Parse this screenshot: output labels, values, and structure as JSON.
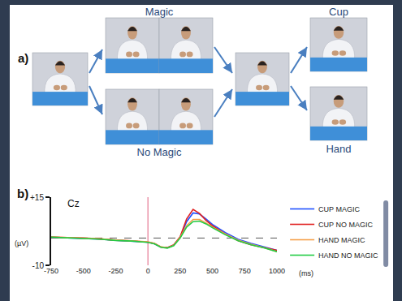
{
  "diagram": {
    "panel_label": "a)",
    "labels": {
      "magic": "Magic",
      "no_magic": "No Magic",
      "cup": "Cup",
      "hand": "Hand"
    }
  },
  "chart_data": {
    "panel_label": "b)",
    "type": "line",
    "annotation": "Cz",
    "x_label": "(ms)",
    "y_label": "(µV)",
    "x": [
      -750,
      -625,
      -500,
      -375,
      -250,
      -125,
      0,
      50,
      100,
      150,
      200,
      250,
      300,
      350,
      400,
      450,
      500,
      600,
      700,
      800,
      900,
      1000
    ],
    "series": [
      {
        "name": "CUP MAGIC",
        "color": "#2050ff",
        "values": [
          0.3,
          0.1,
          0,
          -0.4,
          -0.8,
          -1.1,
          -1.5,
          -2.1,
          -3.3,
          -3.5,
          -2.6,
          0.3,
          6,
          9.2,
          8.8,
          7,
          5,
          2,
          -0.5,
          -2,
          -3.3,
          -4.5
        ]
      },
      {
        "name": "CUP NO MAGIC",
        "color": "#e02020",
        "values": [
          0.3,
          0.2,
          0,
          -0.3,
          -0.8,
          -1,
          -1.5,
          -2,
          -3.3,
          -3.5,
          -2.5,
          0.5,
          7,
          10.5,
          9,
          6.5,
          4.5,
          1.5,
          -1,
          -2.5,
          -3.5,
          -4.5
        ]
      },
      {
        "name": "HAND MAGIC",
        "color": "#f5a04a",
        "values": [
          0.4,
          0.2,
          0.1,
          -0.3,
          -0.7,
          -1,
          -1.4,
          -2,
          -3.2,
          -3.6,
          -2.7,
          0.2,
          4.5,
          6.8,
          6.8,
          5.5,
          4,
          1.5,
          -0.8,
          -2.3,
          -3.5,
          -5
        ]
      },
      {
        "name": "HAND NO MAGIC",
        "color": "#22cc44",
        "values": [
          0.3,
          0.1,
          0,
          -0.4,
          -0.9,
          -1.1,
          -1.6,
          -2.1,
          -3.4,
          -3.7,
          -2.8,
          0,
          4,
          6,
          6.2,
          5.2,
          3.8,
          1.2,
          -1,
          -2.5,
          -3.6,
          -5
        ]
      }
    ],
    "xlim": [
      -750,
      1000
    ],
    "xticks": [
      -750,
      -500,
      -250,
      0,
      250,
      500,
      750,
      1000
    ],
    "ylim": [
      -10,
      15
    ],
    "yticks": [
      {
        "value": 15,
        "label": "+15"
      },
      -10
    ],
    "grid": false,
    "legend": "right",
    "reference_lines": {
      "x": 0,
      "y": 0
    }
  }
}
